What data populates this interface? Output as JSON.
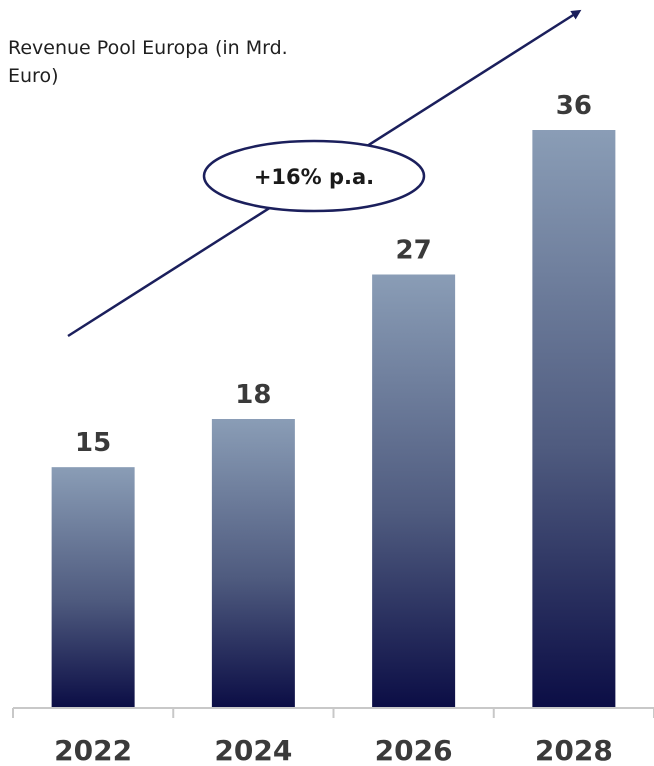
{
  "chart_data": {
    "type": "bar",
    "title": "Revenue Pool Europa (in Mrd. Euro)",
    "categories": [
      "2022",
      "2024",
      "2026",
      "2028"
    ],
    "values": [
      15,
      18,
      27,
      36
    ],
    "ylim": [
      0,
      40
    ],
    "grid": false,
    "annotation": "+16% p.a.",
    "colors": {
      "bar_top": "#8a9db6",
      "bar_bottom": "#0b0d45",
      "arrow": "#1b1f5c",
      "axis": "#c8c8c8"
    }
  }
}
